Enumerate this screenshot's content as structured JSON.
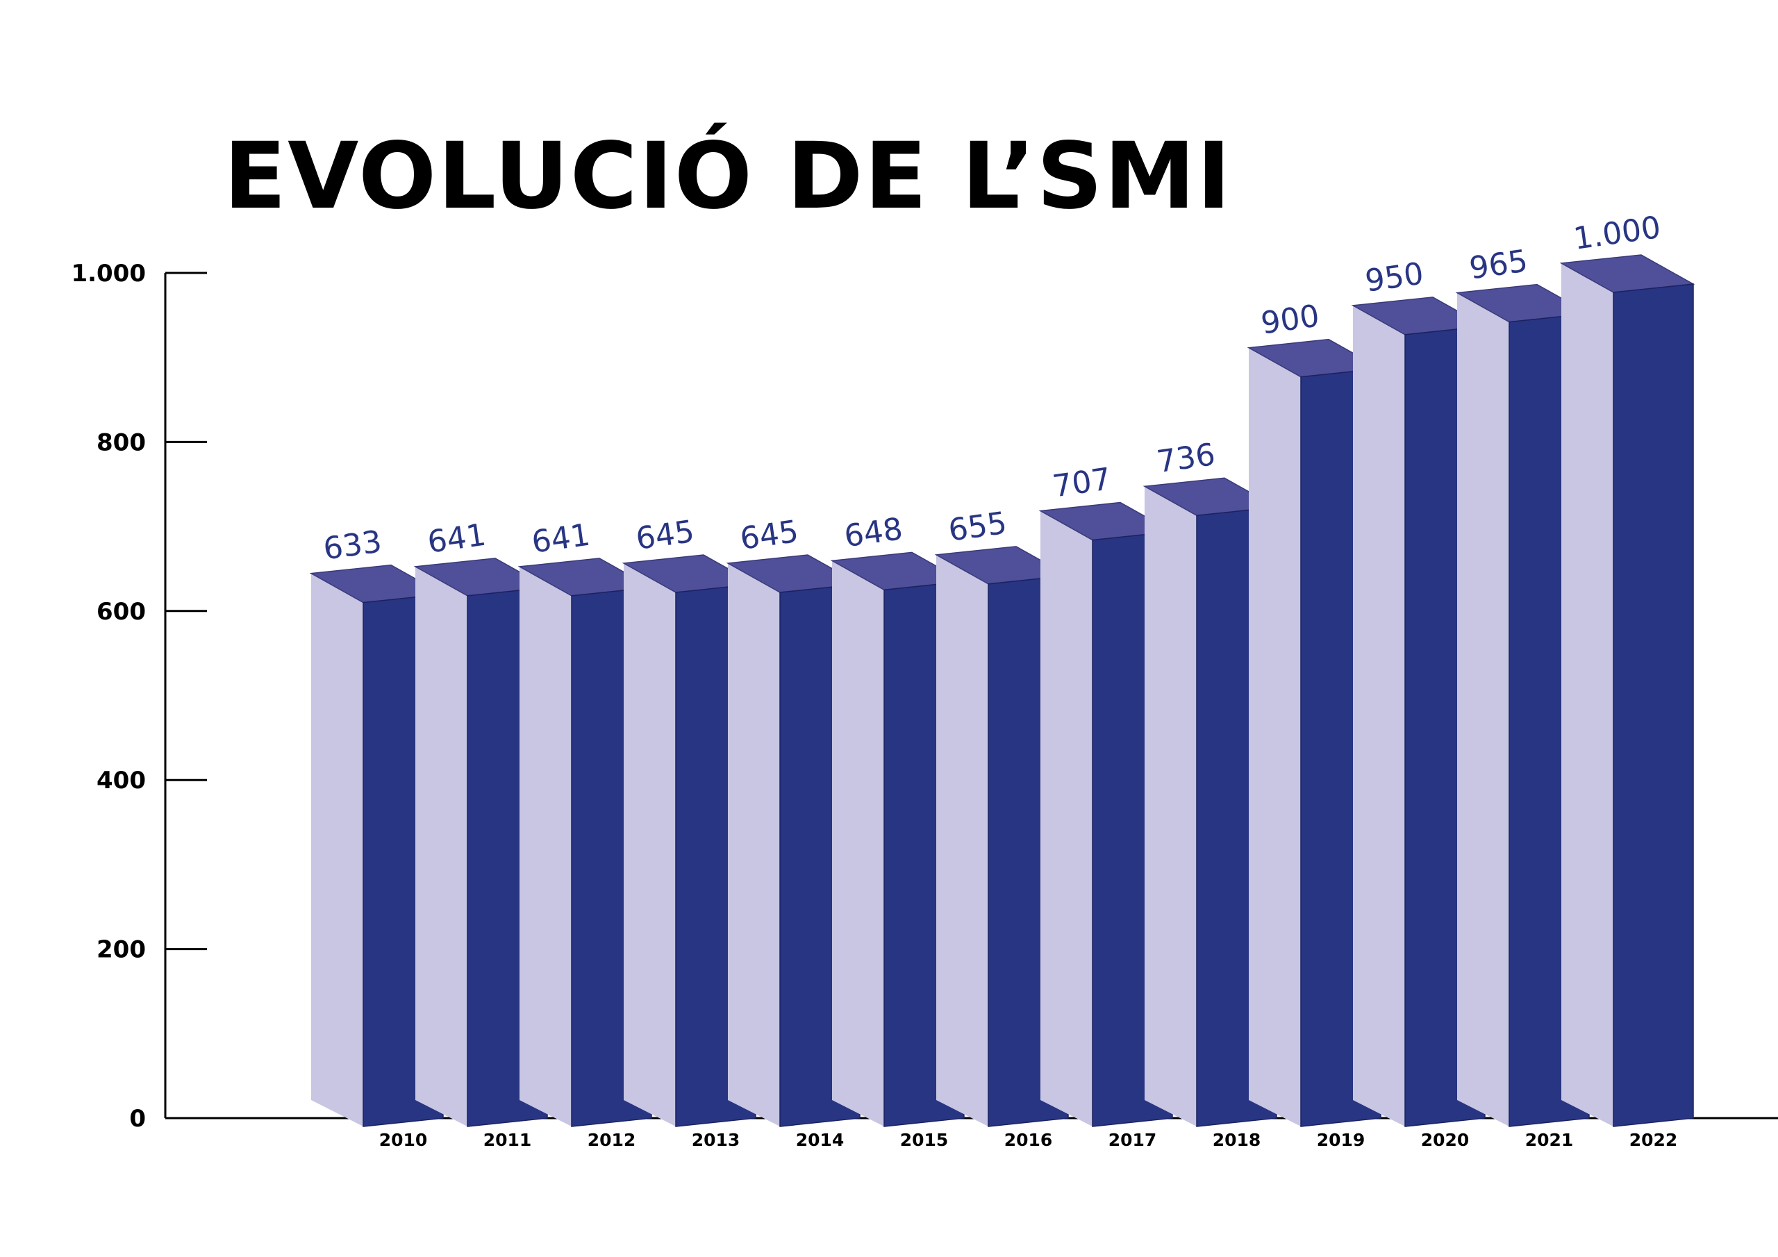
{
  "chart_data": {
    "type": "bar",
    "title": "EVOLUCIÓ DE L’SMI",
    "xlabel": "",
    "ylabel": "",
    "ylim": [
      0,
      1000
    ],
    "yticks": [
      0,
      200,
      400,
      600,
      800,
      1000
    ],
    "ytick_labels": [
      "0",
      "200",
      "400",
      "600",
      "800",
      "1.000"
    ],
    "categories": [
      "2010",
      "2011",
      "2012",
      "2013",
      "2014",
      "2015",
      "2016",
      "2017",
      "2018",
      "2019",
      "2020",
      "2021",
      "2022"
    ],
    "values": [
      633,
      641,
      641,
      645,
      645,
      648,
      655,
      707,
      736,
      900,
      950,
      965,
      1000
    ],
    "value_labels": [
      "633",
      "641",
      "641",
      "645",
      "645",
      "648",
      "655",
      "707",
      "736",
      "900",
      "950",
      "965",
      "1.000"
    ],
    "grid": false,
    "legend": "none",
    "style": "3d-bars"
  },
  "colors": {
    "bar_front": "#283583",
    "bar_top": "#4f4f9a",
    "bar_side": "#c8c6e2",
    "label": "#283583",
    "axis": "#000000"
  }
}
